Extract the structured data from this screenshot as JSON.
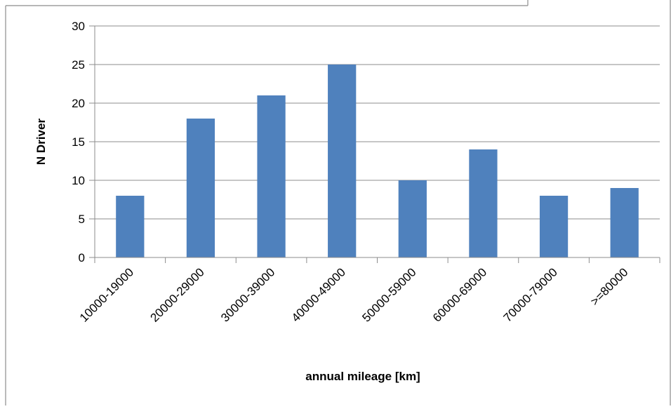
{
  "chart_data": {
    "type": "bar",
    "categories": [
      "10000-19000",
      "20000-29000",
      "30000-39000",
      "40000-49000",
      "50000-59000",
      "60000-69000",
      "70000-79000",
      ">=80000"
    ],
    "values": [
      8,
      18,
      21,
      25,
      10,
      14,
      8,
      9
    ],
    "title": "",
    "xlabel": "annual mileage [km]",
    "ylabel": "N Driver",
    "ylim": [
      0,
      30
    ],
    "yticks": [
      0,
      5,
      10,
      15,
      20,
      25,
      30
    ],
    "grid": true,
    "legend": "none",
    "colors": {
      "bar": "#4f81bd",
      "grid": "#8c8c8c",
      "axis": "#8c8c8c",
      "frame": "#8c8c8c"
    }
  }
}
